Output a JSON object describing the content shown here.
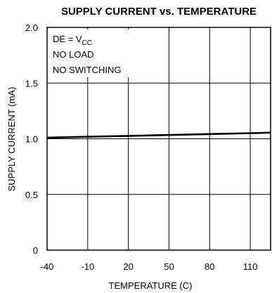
{
  "chart_data": {
    "type": "line",
    "title": "SUPPLY CURRENT vs. TEMPERATURE",
    "xlabel": "TEMPERATURE (C)",
    "ylabel": "SUPPLY CURRENT (mA)",
    "xlim": [
      -40,
      125
    ],
    "ylim": [
      0,
      2.0
    ],
    "x_ticks": [
      -40,
      -10,
      20,
      50,
      80,
      110
    ],
    "x_tick_labels": [
      "-40",
      "-10",
      "20",
      "50",
      "80",
      "110"
    ],
    "y_ticks": [
      0,
      0.5,
      1.0,
      1.5,
      2.0
    ],
    "y_tick_labels": [
      "0",
      "0.5",
      "1.0",
      "1.5",
      "2.0"
    ],
    "grid": true,
    "annotations": {
      "condition_1_prefix": "DE = V",
      "condition_1_subscript": "CC",
      "condition_2": "NO LOAD",
      "condition_3": "NO SWITCHING"
    },
    "series": [
      {
        "x": [
          -40,
          -10,
          20,
          50,
          80,
          110,
          125
        ],
        "values": [
          1.01,
          1.018,
          1.026,
          1.034,
          1.042,
          1.05,
          1.055
        ]
      }
    ]
  }
}
